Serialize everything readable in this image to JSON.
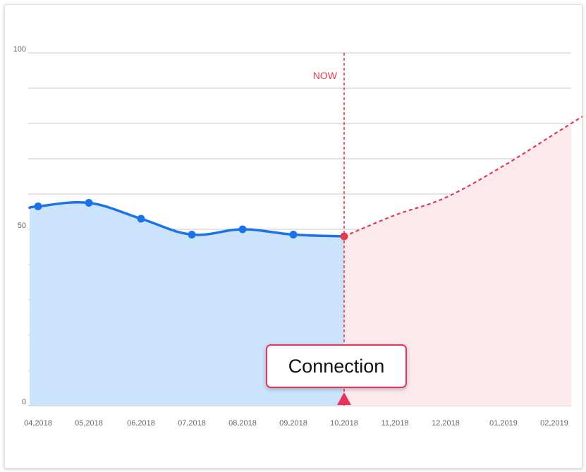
{
  "chart_data": {
    "type": "area",
    "x_categories": [
      "04,2018",
      "05,2018",
      "06,2018",
      "07,2018",
      "08,2018",
      "09,2018",
      "10,2018",
      "11,2018",
      "12,2018",
      "01,2019",
      "02,2019"
    ],
    "y_ticks": [
      "0",
      "50",
      "100"
    ],
    "ylim": [
      0,
      100
    ],
    "grid": true,
    "marker_label": "NOW",
    "marker_x": "10,2018",
    "series": [
      {
        "role": "actual",
        "style": "solid-with-markers",
        "color": "#1a73e8",
        "fill": "#cce3fc",
        "points": [
          {
            "x": "04,2018",
            "y": 56.5
          },
          {
            "x": "05,2018",
            "y": 57.5
          },
          {
            "x": "06,2018",
            "y": 53
          },
          {
            "x": "07,2018",
            "y": 48.5
          },
          {
            "x": "08,2018",
            "y": 50
          },
          {
            "x": "09,2018",
            "y": 48.5
          },
          {
            "x": "10,2018",
            "y": 48
          }
        ]
      },
      {
        "role": "forecast",
        "style": "dashed",
        "color": "#e53950",
        "fill": "#fbe9ec",
        "points": [
          {
            "x": "10,2018",
            "y": 48
          },
          {
            "x": "11,2018",
            "y": 54
          },
          {
            "x": "12,2018",
            "y": 59
          },
          {
            "x": "01,2019",
            "y": 68
          },
          {
            "x": "02,2019",
            "y": 77
          }
        ]
      }
    ]
  },
  "callout": {
    "label": "Connection",
    "border_color": "#e8335b"
  }
}
